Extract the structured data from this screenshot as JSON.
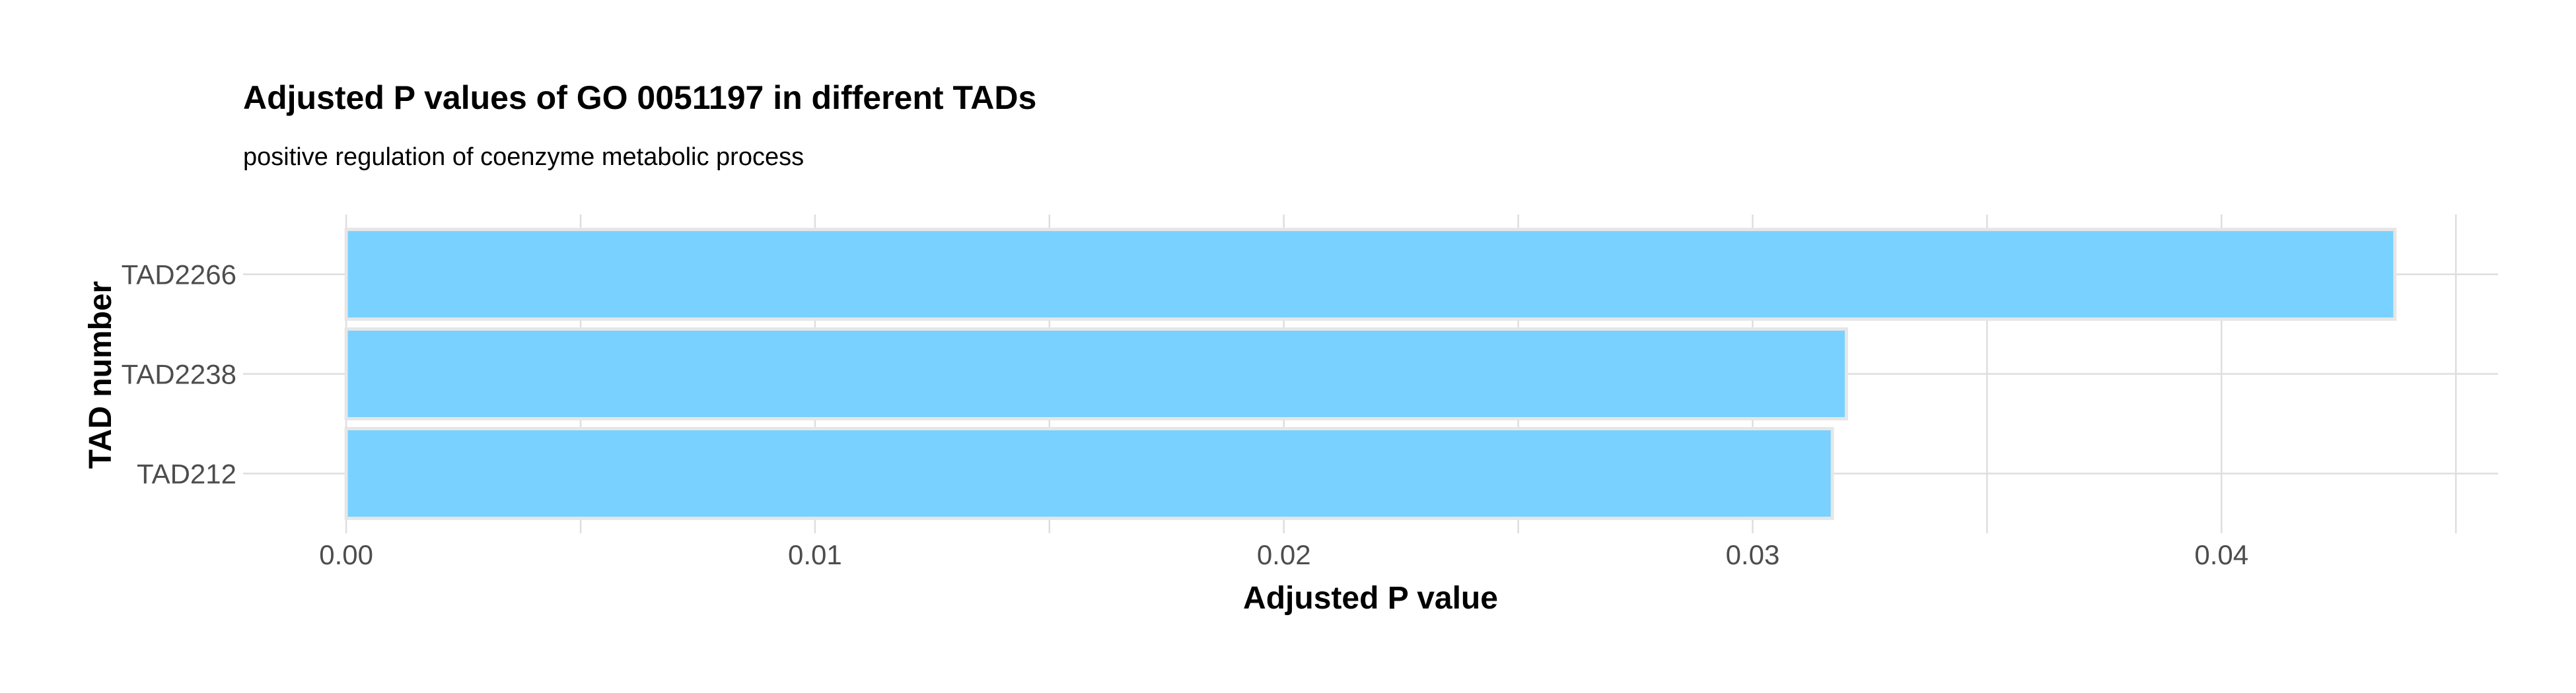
{
  "chart_data": {
    "type": "bar",
    "orientation": "horizontal",
    "title": "Adjusted P values of GO 0051197 in different TADs",
    "subtitle": "positive regulation of coenzyme metabolic process",
    "xlabel": "Adjusted P value",
    "ylabel": "TAD number",
    "categories": [
      "TAD2266",
      "TAD2238",
      "TAD212"
    ],
    "values": [
      0.0437,
      0.032,
      0.0317
    ],
    "xlim": [
      -0.0022,
      0.0459
    ],
    "xticks": [
      0.0,
      0.01,
      0.02,
      0.03,
      0.04
    ],
    "xtick_labels": [
      "0.00",
      "0.01",
      "0.02",
      "0.03",
      "0.04"
    ],
    "grid": true,
    "legend": "none",
    "bar_color": "#75D0FF",
    "bar_edge_color": "#e6e6e6"
  }
}
